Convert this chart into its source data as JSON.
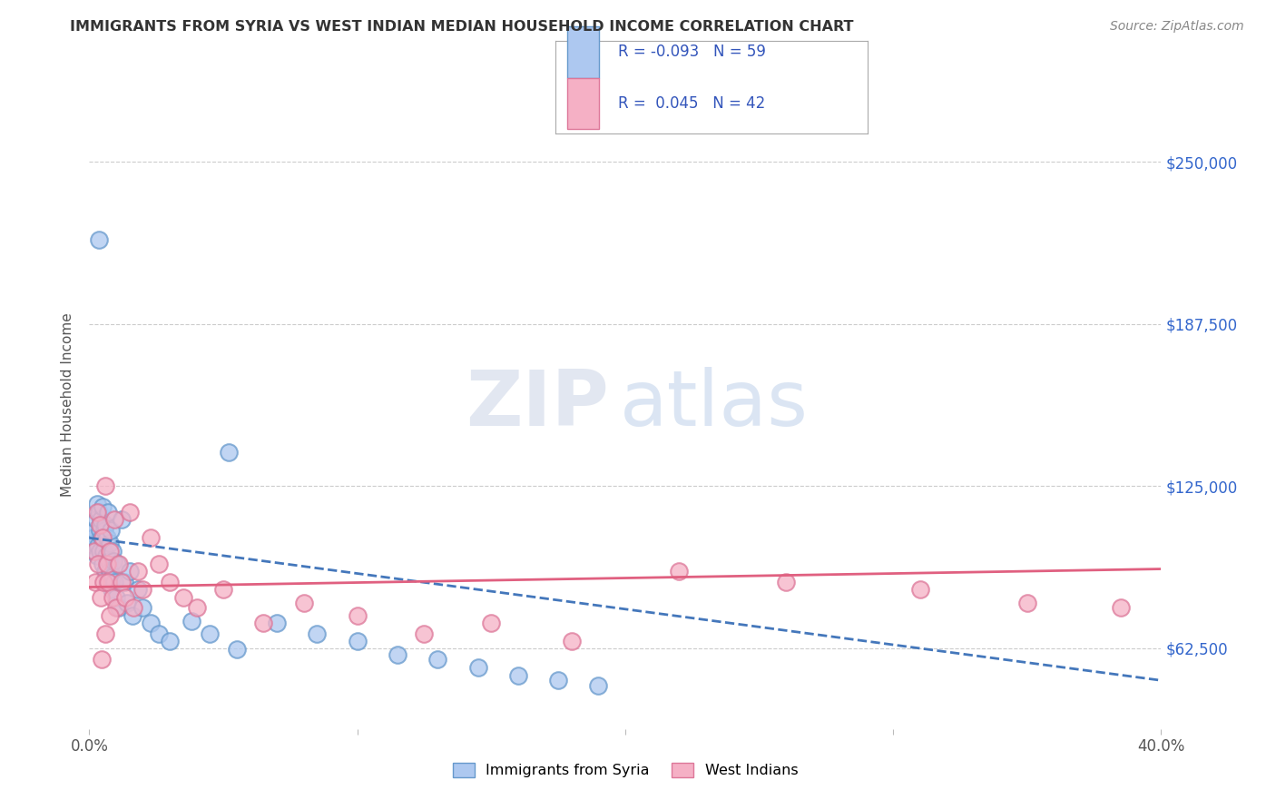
{
  "title": "IMMIGRANTS FROM SYRIA VS WEST INDIAN MEDIAN HOUSEHOLD INCOME CORRELATION CHART",
  "source": "Source: ZipAtlas.com",
  "ylabel": "Median Household Income",
  "xlim": [
    0.0,
    40.0
  ],
  "ylim": [
    31250,
    281250
  ],
  "yticks": [
    62500,
    125000,
    187500,
    250000
  ],
  "ytick_labels": [
    "$62,500",
    "$125,000",
    "$187,500",
    "$250,000"
  ],
  "xtick_labels": [
    "0.0%",
    "",
    "",
    "",
    "40.0%"
  ],
  "watermark_zip": "ZIP",
  "watermark_atlas": "atlas",
  "series1_name": "Immigrants from Syria",
  "series1_color": "#adc8f0",
  "series1_edge_color": "#6699cc",
  "series1_R": -0.093,
  "series1_N": 59,
  "series1_line_color": "#4477bb",
  "series2_name": "West Indians",
  "series2_color": "#f5b0c5",
  "series2_edge_color": "#dd7799",
  "series2_R": 0.045,
  "series2_N": 42,
  "series2_line_color": "#e06080",
  "title_color": "#333333",
  "axis_label_color": "#555555",
  "right_tick_color": "#3366cc",
  "background_color": "#ffffff",
  "plot_bg_color": "#ffffff",
  "grid_color": "#cccccc",
  "legend_text_color": "#3355bb",
  "syria_x": [
    0.12,
    0.15,
    0.18,
    0.2,
    0.22,
    0.25,
    0.28,
    0.3,
    0.32,
    0.35,
    0.38,
    0.4,
    0.42,
    0.45,
    0.48,
    0.5,
    0.52,
    0.55,
    0.58,
    0.6,
    0.62,
    0.65,
    0.68,
    0.7,
    0.72,
    0.75,
    0.78,
    0.8,
    0.82,
    0.85,
    0.88,
    0.9,
    0.95,
    1.0,
    1.05,
    1.1,
    1.2,
    1.3,
    1.4,
    1.5,
    1.6,
    1.8,
    2.0,
    2.3,
    2.6,
    3.0,
    3.8,
    4.5,
    5.5,
    7.0,
    8.5,
    10.0,
    11.5,
    13.0,
    14.5,
    16.0,
    17.5,
    19.0,
    5.2
  ],
  "syria_y": [
    107000,
    105000,
    103000,
    108000,
    100000,
    112000,
    98000,
    118000,
    102000,
    115000,
    108000,
    100000,
    112000,
    105000,
    95000,
    117000,
    100000,
    108000,
    92000,
    110000,
    98000,
    105000,
    88000,
    115000,
    96000,
    103000,
    92000,
    108000,
    85000,
    100000,
    90000,
    96000,
    88000,
    82000,
    95000,
    78000,
    112000,
    88000,
    80000,
    92000,
    75000,
    85000,
    78000,
    72000,
    68000,
    65000,
    73000,
    68000,
    62000,
    72000,
    68000,
    65000,
    60000,
    58000,
    55000,
    52000,
    50000,
    48000,
    138000
  ],
  "wi_x": [
    0.18,
    0.22,
    0.28,
    0.32,
    0.38,
    0.42,
    0.48,
    0.52,
    0.58,
    0.65,
    0.7,
    0.78,
    0.85,
    0.92,
    1.0,
    1.1,
    1.2,
    1.35,
    1.5,
    1.65,
    1.8,
    2.0,
    2.3,
    2.6,
    3.0,
    3.5,
    4.0,
    5.0,
    6.5,
    8.0,
    10.0,
    12.5,
    15.0,
    18.0,
    22.0,
    26.0,
    31.0,
    35.0,
    38.5,
    0.6,
    0.75,
    0.45
  ],
  "wi_y": [
    100000,
    88000,
    115000,
    95000,
    110000,
    82000,
    105000,
    88000,
    125000,
    95000,
    88000,
    100000,
    82000,
    112000,
    78000,
    95000,
    88000,
    82000,
    115000,
    78000,
    92000,
    85000,
    105000,
    95000,
    88000,
    82000,
    78000,
    85000,
    72000,
    80000,
    75000,
    68000,
    72000,
    65000,
    92000,
    88000,
    85000,
    80000,
    78000,
    68000,
    75000,
    58000
  ]
}
